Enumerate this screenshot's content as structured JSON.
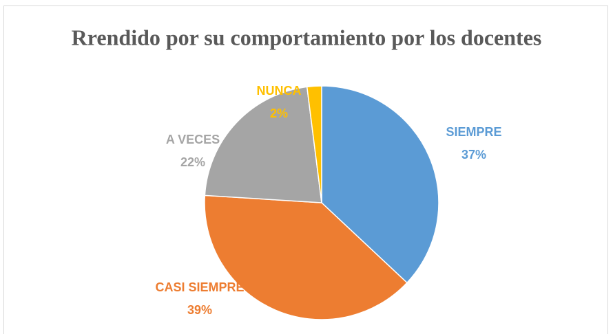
{
  "chart_data": {
    "type": "pie",
    "title": "Rrendido por su comportamiento por los docentes",
    "categories": [
      "SIEMPRE",
      "CASI SIEMPRE",
      "A VECES",
      "NUNCA"
    ],
    "values": [
      37,
      39,
      22,
      2
    ],
    "value_labels": [
      "37%",
      "39%",
      "22%",
      "2%"
    ],
    "colors": [
      "#5B9BD5",
      "#ED7D31",
      "#A5A5A5",
      "#FFC000"
    ]
  }
}
